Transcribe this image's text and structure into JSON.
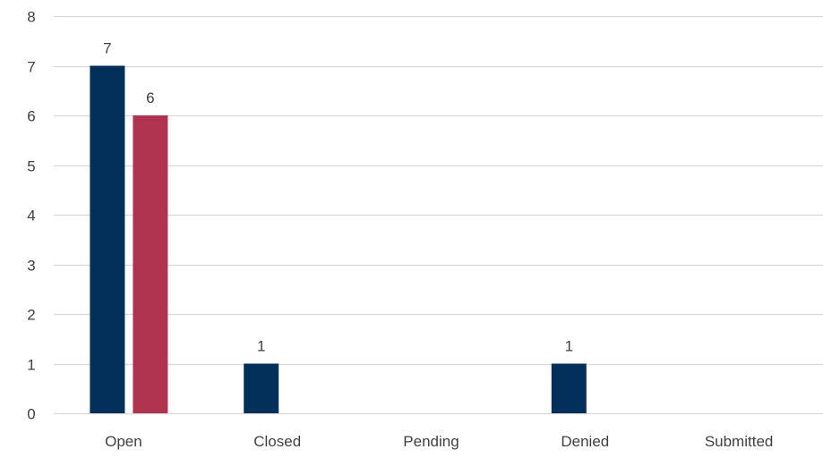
{
  "chart_data": {
    "type": "bar",
    "categories": [
      "Open",
      "Closed",
      "Pending",
      "Denied",
      "Submitted"
    ],
    "series": [
      {
        "color": "#03305a",
        "values": [
          7,
          1,
          0,
          1,
          0
        ]
      },
      {
        "color": "#b0334f",
        "values": [
          6,
          0,
          0,
          0,
          0
        ]
      }
    ],
    "data_labels": [
      [
        7,
        1,
        null,
        1,
        null
      ],
      [
        6,
        null,
        null,
        null,
        null
      ]
    ],
    "ylim": [
      0,
      8
    ],
    "y_ticks": [
      0,
      1,
      2,
      3,
      4,
      5,
      6,
      7,
      8
    ],
    "grid": true,
    "legend": "none",
    "title": "",
    "xlabel": "",
    "ylabel": "",
    "gridline_color": "#d9d9d9"
  }
}
